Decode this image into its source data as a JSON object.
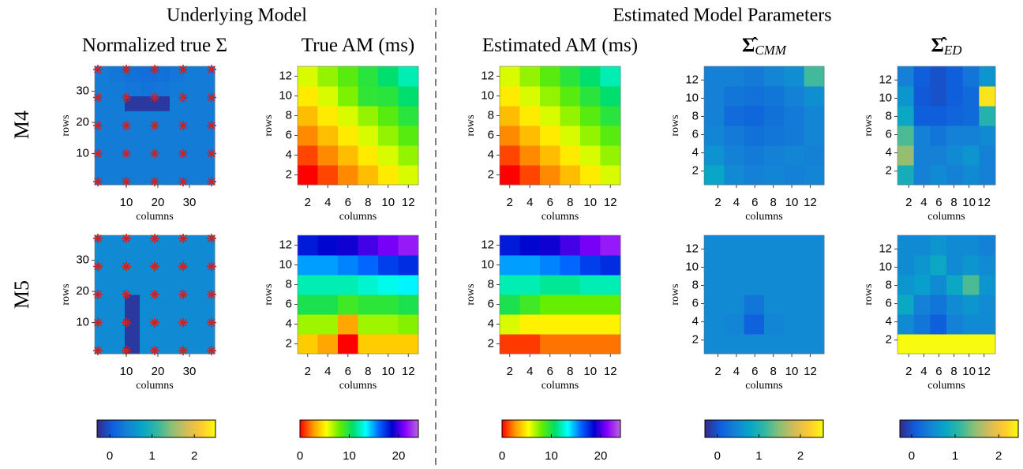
{
  "headings": [
    "Underlying Model",
    "Estimated Model Parameters"
  ],
  "row_labels": [
    "M4",
    "M5"
  ],
  "colorbars": [
    {
      "clim": [
        -0.3,
        2.5
      ],
      "ticks": [
        0,
        1,
        2
      ],
      "colormap": [
        "#352a87",
        "#0f5cdd",
        "#1481d6",
        "#06a4ca",
        "#2eb7a4",
        "#87bf77",
        "#d1bb59",
        "#fec832",
        "#f9fb0e"
      ]
    },
    {
      "clim": [
        0,
        24
      ],
      "ticks": [
        0,
        10,
        20
      ],
      "colormap": [
        "#ff0000",
        "#ff9900",
        "#ffff00",
        "#66ee00",
        "#00dd66",
        "#00ffff",
        "#0066ff",
        "#0000cc",
        "#8800ff",
        "#bb66dd"
      ]
    },
    {
      "clim": [
        0,
        24
      ],
      "ticks": [
        0,
        10,
        20
      ],
      "colormap": [
        "#ff0000",
        "#ff9900",
        "#ffff00",
        "#66ee00",
        "#00dd66",
        "#00ffff",
        "#0066ff",
        "#0000cc",
        "#8800ff",
        "#bb66dd"
      ]
    },
    {
      "clim": [
        -0.3,
        2.55
      ],
      "ticks": [
        0,
        1,
        2
      ],
      "colormap": [
        "#352a87",
        "#0f5cdd",
        "#1481d6",
        "#06a4ca",
        "#2eb7a4",
        "#87bf77",
        "#d1bb59",
        "#fec832",
        "#f9fb0e"
      ]
    },
    {
      "clim": [
        -0.27,
        2.45
      ],
      "ticks": [
        0,
        1,
        2
      ],
      "colormap": [
        "#352a87",
        "#0f5cdd",
        "#1481d6",
        "#06a4ca",
        "#2eb7a4",
        "#87bf77",
        "#d1bb59",
        "#fec832",
        "#f9fb0e"
      ]
    }
  ],
  "chart_data": [
    {
      "type": "heatmap",
      "title": "Normalized true Σ",
      "xlabel": "columns",
      "ylabel": "rows",
      "xlim": [
        0,
        38
      ],
      "ylim": [
        0,
        38
      ],
      "xticks": [
        10,
        20,
        30
      ],
      "yticks": [
        10,
        20,
        30
      ],
      "markers": {
        "x": [
          1,
          10,
          19,
          28,
          37
        ],
        "y": [
          1,
          10,
          19,
          28,
          37
        ],
        "color": "#cc2222"
      },
      "values": [
        [
          0.35,
          0.35,
          0.35,
          0.35,
          0.35,
          0.35,
          0.35,
          0.35
        ],
        [
          0.35,
          0.35,
          0.35,
          0.35,
          0.35,
          0.35,
          0.35,
          0.35
        ],
        [
          0.35,
          0.35,
          0.35,
          0.35,
          0.35,
          0.35,
          0.35,
          0.35
        ],
        [
          0.35,
          0.35,
          0.35,
          0.35,
          0.35,
          0.35,
          0.35,
          0.35
        ],
        [
          0.35,
          0.35,
          0.35,
          0.35,
          0.35,
          0.35,
          0.35,
          0.35
        ],
        [
          0.35,
          0.35,
          -0.2,
          -0.2,
          -0.2,
          0.35,
          0.35,
          0.35
        ],
        [
          0.35,
          0.33,
          0.3,
          0.28,
          0.3,
          0.33,
          0.35,
          0.35
        ],
        [
          0.35,
          0.3,
          0.25,
          0.22,
          0.25,
          0.3,
          0.35,
          0.35
        ]
      ]
    },
    {
      "type": "heatmap",
      "xlabel": "columns",
      "ylabel": "rows",
      "xlim": [
        0,
        38
      ],
      "ylim": [
        0,
        38
      ],
      "xticks": [
        10,
        20,
        30
      ],
      "yticks": [
        10,
        20,
        30
      ],
      "markers": {
        "x": [
          1,
          10,
          19,
          28,
          37
        ],
        "y": [
          1,
          10,
          19,
          28,
          37
        ],
        "color": "#cc2222"
      },
      "values": [
        [
          0.5,
          0.5,
          -0.2,
          0.5,
          0.5,
          0.5,
          0.5,
          0.5
        ],
        [
          0.5,
          0.5,
          -0.2,
          0.5,
          0.5,
          0.5,
          0.5,
          0.5
        ],
        [
          0.5,
          0.5,
          -0.2,
          0.5,
          0.5,
          0.5,
          0.5,
          0.5
        ],
        [
          0.5,
          0.5,
          -0.2,
          0.5,
          0.5,
          0.5,
          0.5,
          0.5
        ],
        [
          0.5,
          0.5,
          0.5,
          0.5,
          0.5,
          0.5,
          0.5,
          0.5
        ],
        [
          0.5,
          0.5,
          0.5,
          0.5,
          0.5,
          0.5,
          0.5,
          0.5
        ],
        [
          0.5,
          0.5,
          0.5,
          0.5,
          0.5,
          0.5,
          0.5,
          0.5
        ],
        [
          0.5,
          0.5,
          0.5,
          0.5,
          0.5,
          0.5,
          0.5,
          0.5
        ]
      ]
    },
    {
      "type": "heatmap",
      "title": "True AM (ms)",
      "xlabel": "columns",
      "ylabel": "rows",
      "xlim": [
        1,
        13
      ],
      "ylim": [
        1,
        13
      ],
      "xticks": [
        2,
        4,
        6,
        8,
        10,
        12
      ],
      "yticks": [
        2,
        4,
        6,
        8,
        10,
        12
      ],
      "values": [
        [
          0,
          1.2,
          2.4,
          3.6,
          4.8,
          6.0
        ],
        [
          1.2,
          2.4,
          3.6,
          4.8,
          6,
          7.2
        ],
        [
          2.4,
          3.6,
          4.8,
          6,
          7.2,
          8.4
        ],
        [
          3.6,
          4.8,
          6,
          7.2,
          8.4,
          9.6
        ],
        [
          4.8,
          6,
          7.6,
          9.4,
          9.6,
          10.8
        ],
        [
          6,
          7.2,
          8.4,
          9.6,
          10.8,
          12
        ]
      ]
    },
    {
      "type": "heatmap",
      "xlabel": "columns",
      "ylabel": "rows",
      "xlim": [
        1,
        13
      ],
      "ylim": [
        1,
        13
      ],
      "xticks": [
        2,
        4,
        6,
        8,
        10,
        12
      ],
      "yticks": [
        2,
        4,
        6,
        8,
        10,
        12
      ],
      "values": [
        [
          4,
          3,
          0,
          4,
          4,
          4
        ],
        [
          7,
          7,
          3,
          7,
          7,
          7.5
        ],
        [
          10,
          10,
          9,
          9.5,
          9.5,
          10
        ],
        [
          12,
          12,
          12,
          12.5,
          13,
          13.5
        ],
        [
          15,
          15,
          15.5,
          16,
          17,
          17.5
        ],
        [
          18,
          18.5,
          19,
          20,
          21,
          22
        ]
      ]
    },
    {
      "type": "heatmap",
      "title": "Estimated AM (ms)",
      "xlabel": "columns",
      "ylabel": "rows",
      "xlim": [
        1,
        13
      ],
      "ylim": [
        1,
        13
      ],
      "xticks": [
        2,
        4,
        6,
        8,
        10,
        12
      ],
      "yticks": [
        2,
        4,
        6,
        8,
        10,
        12
      ],
      "values": [
        [
          0,
          1.2,
          2.4,
          3.6,
          4.8,
          6.0
        ],
        [
          1.2,
          2.4,
          3.6,
          4.8,
          6,
          7.2
        ],
        [
          2.4,
          3.6,
          4.8,
          6,
          7.2,
          8.4
        ],
        [
          3.6,
          4.8,
          6,
          7.2,
          8.4,
          9.6
        ],
        [
          4.8,
          6,
          7.2,
          8.4,
          9.6,
          10.8
        ],
        [
          6,
          7.2,
          8.4,
          9.6,
          10.8,
          12
        ]
      ]
    },
    {
      "type": "heatmap",
      "xlabel": "columns",
      "ylabel": "rows",
      "xlim": [
        1,
        13
      ],
      "ylim": [
        1,
        13
      ],
      "xticks": [
        2,
        4,
        6,
        8,
        10,
        12
      ],
      "yticks": [
        2,
        4,
        6,
        8,
        10,
        12
      ],
      "values": [
        [
          1,
          1,
          2,
          2,
          2,
          2
        ],
        [
          6,
          5,
          5,
          5,
          5,
          5
        ],
        [
          10,
          9,
          8,
          8,
          8,
          8
        ],
        [
          12,
          12,
          11.5,
          11.5,
          12,
          12
        ],
        [
          15,
          15,
          15.5,
          16,
          17,
          17.5
        ],
        [
          18,
          18.5,
          19,
          20,
          21,
          22
        ]
      ]
    },
    {
      "type": "heatmap",
      "title": "Σ̂",
      "title_sub": "CMM",
      "xlabel": "columns",
      "ylabel": "rows",
      "xlim": [
        0.5,
        13.5
      ],
      "ylim": [
        0.5,
        13.5
      ],
      "xticks": [
        2,
        4,
        6,
        8,
        10,
        12
      ],
      "yticks": [
        2,
        4,
        6,
        8,
        10,
        12
      ],
      "values": [
        [
          0.8,
          0.5,
          0.4,
          0.45,
          0.4,
          0.45
        ],
        [
          0.6,
          0.4,
          0.35,
          0.4,
          0.45,
          0.4
        ],
        [
          0.45,
          0.35,
          0.25,
          0.3,
          0.35,
          0.45
        ],
        [
          0.4,
          0.2,
          0.15,
          0.25,
          0.35,
          0.45
        ],
        [
          0.4,
          0.3,
          0.25,
          0.3,
          0.4,
          0.55
        ],
        [
          0.4,
          0.4,
          0.35,
          0.45,
          0.55,
          1.2
        ]
      ]
    },
    {
      "type": "heatmap",
      "xlabel": "columns",
      "ylabel": "rows",
      "xlim": [
        0.5,
        13.5
      ],
      "ylim": [
        0.5,
        13.5
      ],
      "xticks": [
        2,
        4,
        6,
        8,
        10,
        12
      ],
      "yticks": [
        2,
        4,
        6,
        8,
        10,
        12
      ],
      "values": [
        [
          0.5,
          0.5,
          0.5,
          0.5,
          0.5,
          0.5
        ],
        [
          0.5,
          0.45,
          0.1,
          0.45,
          0.5,
          0.5
        ],
        [
          0.5,
          0.5,
          0.3,
          0.5,
          0.5,
          0.5
        ],
        [
          0.5,
          0.5,
          0.5,
          0.5,
          0.5,
          0.5
        ],
        [
          0.5,
          0.5,
          0.5,
          0.5,
          0.5,
          0.5
        ],
        [
          0.5,
          0.5,
          0.5,
          0.5,
          0.5,
          0.5
        ]
      ]
    },
    {
      "type": "heatmap",
      "title": "Σ̂",
      "title_sub": "ED",
      "xlabel": "columns",
      "ylabel": "rows",
      "xlim": [
        0.5,
        13.5
      ],
      "ylim": [
        0.5,
        13.5
      ],
      "xticks": [
        2,
        4,
        6,
        8,
        10,
        12
      ],
      "yticks": [
        2,
        4,
        6,
        8,
        10,
        12
      ],
      "values": [
        [
          0.9,
          0.4,
          0.5,
          0.4,
          0.5,
          0.4
        ],
        [
          1.5,
          0.4,
          0.4,
          0.5,
          0.6,
          0.4
        ],
        [
          1.2,
          0.4,
          0.3,
          0.4,
          0.4,
          0.5
        ],
        [
          0.8,
          0.1,
          0.1,
          0.15,
          0.2,
          1.0
        ],
        [
          0.6,
          0.05,
          0.0,
          0.1,
          0.2,
          2.3
        ],
        [
          0.4,
          0.1,
          0.0,
          0.1,
          0.3,
          0.6
        ]
      ]
    },
    {
      "type": "heatmap",
      "xlabel": "columns",
      "ylabel": "rows",
      "xlim": [
        0.5,
        13.5
      ],
      "ylim": [
        0.5,
        13.5
      ],
      "xticks": [
        2,
        4,
        6,
        8,
        10,
        12
      ],
      "yticks": [
        2,
        4,
        6,
        8,
        10,
        12
      ],
      "values": [
        [
          2.5,
          2.5,
          2.5,
          2.5,
          2.5,
          2.5
        ],
        [
          0.5,
          0.3,
          0.1,
          0.4,
          0.5,
          0.5
        ],
        [
          0.8,
          0.4,
          0.3,
          0.5,
          0.6,
          0.5
        ],
        [
          0.6,
          0.7,
          0.5,
          0.8,
          1.2,
          0.6
        ],
        [
          0.5,
          0.6,
          0.8,
          0.5,
          0.6,
          0.5
        ],
        [
          0.5,
          0.5,
          0.6,
          0.5,
          0.5,
          0.4
        ]
      ]
    }
  ]
}
